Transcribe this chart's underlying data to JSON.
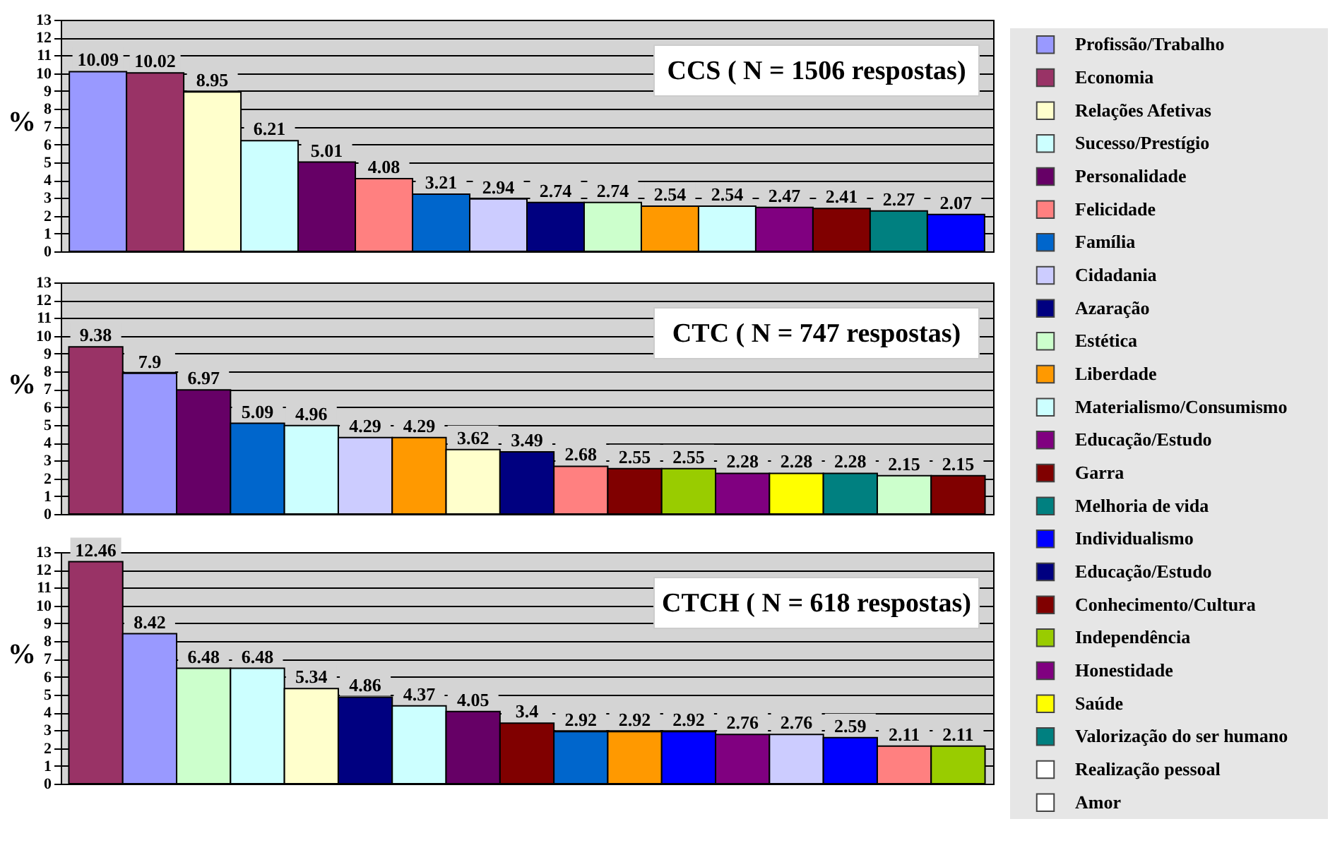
{
  "chart_data": [
    {
      "type": "bar",
      "title": "CCS  ( N = 1506 respostas)",
      "ylabel": "%",
      "categories": [
        null,
        null,
        null,
        null,
        null,
        null,
        null,
        null,
        null,
        null,
        null,
        null,
        null,
        null,
        null,
        null
      ],
      "values": [
        10.09,
        10.02,
        8.95,
        6.21,
        5.01,
        4.08,
        3.21,
        2.94,
        2.74,
        2.74,
        2.54,
        2.54,
        2.47,
        2.41,
        2.27,
        2.07
      ],
      "colors": [
        "#9999ff",
        "#993366",
        "#ffffcc",
        "#ccffff",
        "#660066",
        "#ff8080",
        "#0066cc",
        "#ccccff",
        "#000080",
        "#ccffcc",
        "#ff9900",
        "#ccffff",
        "#800080",
        "#800000",
        "#008080",
        "#0000ff"
      ],
      "ylim": [
        0,
        13
      ],
      "yticks": [
        0,
        1,
        2,
        3,
        4,
        5,
        6,
        7,
        8,
        9,
        10,
        11,
        12,
        13
      ],
      "grid": "y",
      "data_labels": true,
      "tick_labels": "y"
    },
    {
      "type": "bar",
      "title": "CTC ( N = 747 respostas)",
      "ylabel": "%",
      "categories": [
        null,
        null,
        null,
        null,
        null,
        null,
        null,
        null,
        null,
        null,
        null,
        null,
        null,
        null,
        null,
        null,
        null
      ],
      "values": [
        9.38,
        7.9,
        6.97,
        5.09,
        4.96,
        4.29,
        4.29,
        3.62,
        3.49,
        2.68,
        2.55,
        2.55,
        2.28,
        2.28,
        2.28,
        2.15,
        2.15
      ],
      "colors": [
        "#993366",
        "#9999ff",
        "#660066",
        "#0066cc",
        "#ccffff",
        "#ccccff",
        "#ff9900",
        "#ffffcc",
        "#000080",
        "#ff8080",
        "#800000",
        "#99cc00",
        "#800080",
        "#ffff00",
        "#008080",
        "#ccffcc",
        "#800000"
      ],
      "ylim": [
        0,
        13
      ],
      "yticks": [
        0,
        1,
        2,
        3,
        4,
        5,
        6,
        7,
        8,
        9,
        10,
        11,
        12,
        13
      ],
      "grid": "y",
      "data_labels": true,
      "tick_labels": "y"
    },
    {
      "type": "bar",
      "title": "CTCH ( N = 618 respostas)",
      "ylabel": "%",
      "categories": [
        null,
        null,
        null,
        null,
        null,
        null,
        null,
        null,
        null,
        null,
        null,
        null,
        null,
        null,
        null,
        null,
        null
      ],
      "values": [
        12.46,
        8.42,
        6.48,
        6.48,
        5.34,
        4.86,
        4.37,
        4.05,
        3.4,
        2.92,
        2.92,
        2.92,
        2.76,
        2.76,
        2.59,
        2.11,
        2.11
      ],
      "colors": [
        "#993366",
        "#9999ff",
        "#ccffcc",
        "#ccffff",
        "#ffffcc",
        "#000080",
        "#ccffff",
        "#660066",
        "#800000",
        "#0066cc",
        "#ff9900",
        "#0000ff",
        "#800080",
        "#ccccff",
        "#0000ff",
        "#ff8080",
        "#99cc00"
      ],
      "ylim": [
        0,
        13
      ],
      "yticks": [
        0,
        1,
        2,
        3,
        4,
        5,
        6,
        7,
        8,
        9,
        10,
        11,
        12,
        13
      ],
      "grid": "y",
      "data_labels": true,
      "tick_labels": "y"
    },
    {
      "type": "other",
      "categories": [
        "Profissão/Trabalho",
        "Economia",
        "Relações Afetivas",
        "Sucesso/Prestígio",
        "Personalidade",
        "Felicidade",
        "Família",
        "Cidadania",
        "Azaração",
        "Estética",
        "Liberdade",
        "Materialismo/Consumismo",
        "Educação/Estudo",
        "Garra",
        "Melhoria de vida",
        "Individualismo",
        "Educação/Estudo",
        "Conhecimento/Cultura",
        "Independência",
        "Honestidade",
        "Saúde",
        "Valorização do ser humano",
        "Realização pessoal",
        "Amor"
      ],
      "colors": [
        "#9999ff",
        "#993366",
        "#ffffcc",
        "#ccffff",
        "#660066",
        "#ff8080",
        "#0066cc",
        "#ccccff",
        "#000080",
        "#ccffcc",
        "#ff9900",
        "#ccffff",
        "#800080",
        "#800000",
        "#008080",
        "#0000ff",
        "#000080",
        "#800000",
        "#99cc00",
        "#800080",
        "#ffff00",
        "#008080",
        "#ffffff",
        "#ffffff"
      ]
    }
  ]
}
